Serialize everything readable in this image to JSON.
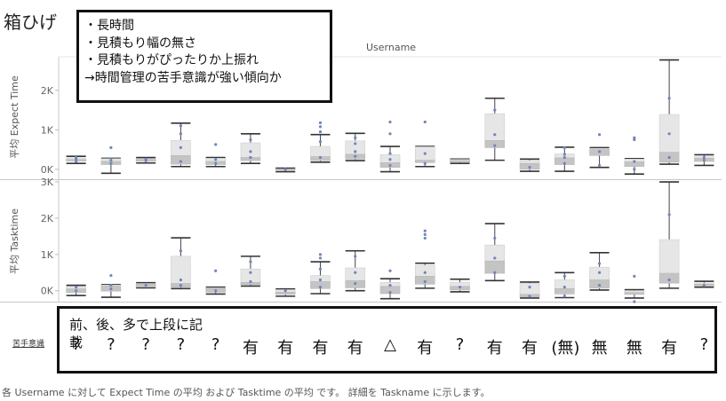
{
  "page_title": "箱ひげ",
  "note_lines": [
    "・長時間",
    "・見積もり幅の無さ",
    "・見積もりがぴったりか上振れ",
    "→時間管理の苦手意識が強い傾向か"
  ],
  "column_header": "Username",
  "row_label": "苦手意識",
  "bottom_note": "前、後、多で上段に記\n載",
  "category_labels": [
    "?",
    "?",
    "?",
    "?",
    "?",
    "有",
    "有",
    "有",
    "有",
    "△",
    "有",
    "?",
    "有",
    "有",
    "(無)",
    "無",
    "無",
    "有",
    "?"
  ],
  "caption": "各 Username に対して Expect Time の平均 および Tasktime の平均 です。 詳細を Taskname に示します。",
  "chart_data": [
    {
      "type": "box",
      "ylabel": "平均 Expect Time",
      "yticks": [
        "2K",
        "1K",
        "0K"
      ],
      "ytick_values": [
        2000,
        1000,
        0
      ],
      "ylim": [
        -250,
        2850
      ],
      "grid": false,
      "boxes": [
        {
          "min": 150,
          "q1": 210,
          "median": 250,
          "q3": 290,
          "max": 330,
          "points": [
            200,
            260,
            300
          ]
        },
        {
          "min": -100,
          "q1": 120,
          "median": 200,
          "q3": 270,
          "max": 280,
          "points": [
            150,
            230,
            550
          ]
        },
        {
          "min": 160,
          "q1": 200,
          "median": 250,
          "q3": 270,
          "max": 300,
          "points": [
            220,
            260
          ]
        },
        {
          "min": 70,
          "q1": 130,
          "median": 350,
          "q3": 730,
          "max": 1170,
          "points": [
            200,
            550,
            900,
            1100
          ]
        },
        {
          "min": 70,
          "q1": 120,
          "median": 200,
          "q3": 280,
          "max": 300,
          "points": [
            150,
            250,
            630
          ]
        },
        {
          "min": 150,
          "q1": 220,
          "median": 300,
          "q3": 670,
          "max": 900,
          "points": [
            300,
            450,
            750
          ]
        },
        {
          "min": -60,
          "q1": -20,
          "median": 0,
          "q3": 10,
          "max": 30,
          "points": [
            0
          ]
        },
        {
          "min": 180,
          "q1": 220,
          "median": 320,
          "q3": 580,
          "max": 880,
          "points": [
            300,
            700,
            950,
            1080,
            1180
          ]
        },
        {
          "min": 220,
          "q1": 260,
          "median": 380,
          "q3": 720,
          "max": 910,
          "points": [
            330,
            450,
            650,
            800
          ]
        },
        {
          "min": -60,
          "q1": 50,
          "median": 170,
          "q3": 370,
          "max": 580,
          "points": [
            100,
            250,
            400,
            900,
            1200
          ]
        },
        {
          "min": 70,
          "q1": 170,
          "median": 230,
          "q3": 570,
          "max": 580,
          "points": [
            150,
            400,
            1200
          ]
        },
        {
          "min": 150,
          "q1": 180,
          "median": 220,
          "q3": 250,
          "max": 260,
          "points": []
        },
        {
          "min": 230,
          "q1": 550,
          "median": 730,
          "q3": 1410,
          "max": 1800,
          "points": [
            600,
            880,
            1500
          ]
        },
        {
          "min": -50,
          "q1": 0,
          "median": 150,
          "q3": 220,
          "max": 260,
          "points": [
            50
          ]
        },
        {
          "min": -50,
          "q1": 120,
          "median": 290,
          "q3": 390,
          "max": 560,
          "points": [
            150,
            300,
            380,
            550
          ]
        },
        {
          "min": 50,
          "q1": 350,
          "median": 500,
          "q3": 530,
          "max": 550,
          "points": [
            100,
            450,
            880
          ]
        },
        {
          "min": -120,
          "q1": 70,
          "median": 190,
          "q3": 260,
          "max": 270,
          "points": [
            0,
            200,
            750,
            800
          ]
        },
        {
          "min": 130,
          "q1": 180,
          "median": 430,
          "q3": 1390,
          "max": 2770,
          "points": [
            300,
            900,
            1800
          ]
        },
        {
          "min": 100,
          "q1": 200,
          "median": 280,
          "q3": 320,
          "max": 370,
          "points": [
            230,
            300
          ]
        }
      ]
    },
    {
      "type": "box",
      "ylabel": "平均 Tasktime",
      "yticks": [
        "3K",
        "2K",
        "1K",
        "0K"
      ],
      "ytick_values": [
        3000,
        2000,
        1000,
        0
      ],
      "ylim": [
        -300,
        3050
      ],
      "grid": false,
      "boxes": [
        {
          "min": -130,
          "q1": -50,
          "median": 50,
          "q3": 120,
          "max": 150,
          "points": [
            0,
            100
          ]
        },
        {
          "min": -180,
          "q1": -10,
          "median": 130,
          "q3": 160,
          "max": 170,
          "points": [
            50,
            150,
            420
          ]
        },
        {
          "min": 80,
          "q1": 100,
          "median": 180,
          "q3": 200,
          "max": 220,
          "points": [
            150
          ]
        },
        {
          "min": 60,
          "q1": 100,
          "median": 200,
          "q3": 950,
          "max": 1460,
          "points": [
            150,
            300,
            1100
          ]
        },
        {
          "min": -90,
          "q1": -40,
          "median": 60,
          "q3": 80,
          "max": 100,
          "points": [
            0,
            550
          ]
        },
        {
          "min": 130,
          "q1": 170,
          "median": 230,
          "q3": 600,
          "max": 950,
          "points": [
            250,
            500,
            800
          ]
        },
        {
          "min": -150,
          "q1": -100,
          "median": -40,
          "q3": 30,
          "max": 50,
          "points": [
            0
          ]
        },
        {
          "min": -80,
          "q1": 60,
          "median": 250,
          "q3": 420,
          "max": 800,
          "points": [
            100,
            300,
            600,
            900,
            1000
          ]
        },
        {
          "min": 0,
          "q1": 80,
          "median": 280,
          "q3": 630,
          "max": 1100,
          "points": [
            200,
            500,
            950
          ]
        },
        {
          "min": -220,
          "q1": -80,
          "median": 120,
          "q3": 230,
          "max": 330,
          "points": [
            -50,
            150,
            550
          ]
        },
        {
          "min": 70,
          "q1": 180,
          "median": 400,
          "q3": 700,
          "max": 760,
          "points": [
            250,
            500,
            1450,
            1550,
            1650
          ]
        },
        {
          "min": -30,
          "q1": 20,
          "median": 120,
          "q3": 230,
          "max": 320,
          "points": [
            100
          ]
        },
        {
          "min": 280,
          "q1": 480,
          "median": 820,
          "q3": 1260,
          "max": 1850,
          "points": [
            500,
            900,
            1450
          ]
        },
        {
          "min": -200,
          "q1": -170,
          "median": -100,
          "q3": 200,
          "max": 240,
          "points": [
            -150,
            100
          ]
        },
        {
          "min": -190,
          "q1": -90,
          "median": 60,
          "q3": 300,
          "max": 500,
          "points": [
            -150,
            100,
            400
          ]
        },
        {
          "min": 20,
          "q1": 70,
          "median": 300,
          "q3": 650,
          "max": 1050,
          "points": [
            150,
            500,
            750
          ]
        },
        {
          "min": -200,
          "q1": -100,
          "median": -50,
          "q3": 0,
          "max": 30,
          "points": [
            -300,
            400
          ]
        },
        {
          "min": 70,
          "q1": 210,
          "median": 480,
          "q3": 1410,
          "max": 3000,
          "points": [
            300,
            2100
          ]
        },
        {
          "min": 100,
          "q1": 130,
          "median": 180,
          "q3": 210,
          "max": 260,
          "points": [
            150
          ]
        }
      ]
    }
  ]
}
